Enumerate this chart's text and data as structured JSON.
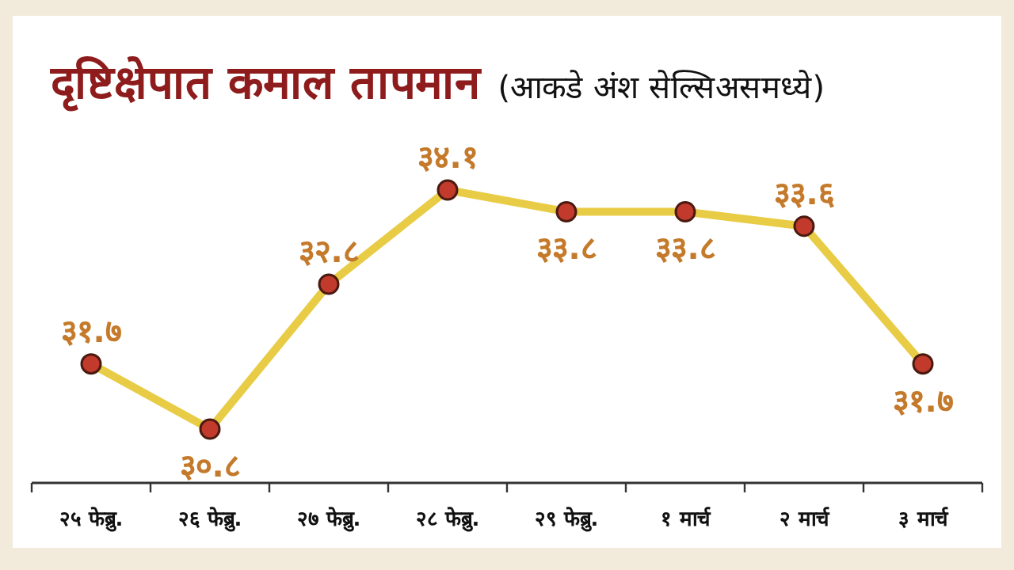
{
  "chart_data": {
    "type": "line",
    "title": "दृष्टिक्षेपात कमाल तापमान",
    "subtitle": "(आकडे अंश सेल्सिअसमध्ये)",
    "categories": [
      "२५ फेब्रु.",
      "२६ फेब्रु.",
      "२७ फेब्रु.",
      "२८ फेब्रु.",
      "२९ फेब्रु.",
      "१ मार्च",
      "२ मार्च",
      "३ मार्च"
    ],
    "series": [
      {
        "color": "#e9cc45",
        "values": [
          31.7,
          30.8,
          32.8,
          34.1,
          33.8,
          33.8,
          33.6,
          31.7
        ],
        "value_labels": [
          "३१.७",
          "३०.८",
          "३२.८",
          "३४.१",
          "३३.८",
          "३३.८",
          "३३.६",
          "३१.७"
        ]
      }
    ],
    "tick_labels": "x",
    "marker": "circle"
  }
}
